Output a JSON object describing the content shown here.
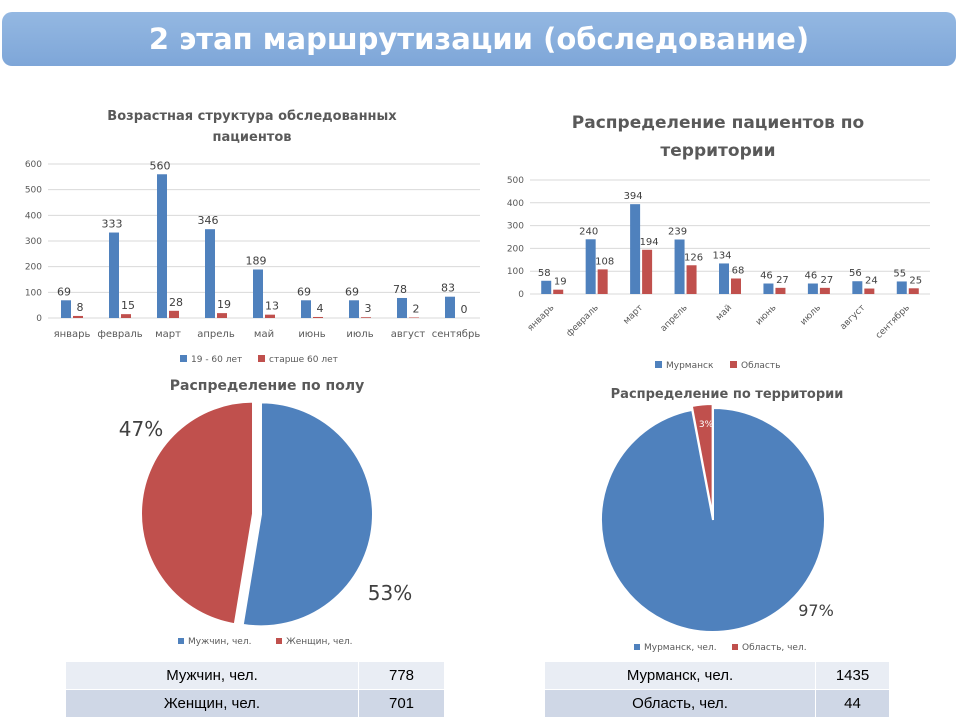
{
  "header": {
    "title": "2 этап маршрутизации (обследование)"
  },
  "colors": {
    "blue": "#4f81bd",
    "red": "#c0504d",
    "banner": "#8db3e2"
  },
  "chart_data": [
    {
      "id": "age",
      "type": "bar",
      "title_lines": [
        "Возрастная структура обследованных",
        "пациентов"
      ],
      "categories": [
        "январь",
        "февраль",
        "март",
        "апрель",
        "май",
        "июнь",
        "июль",
        "август",
        "сентябрь"
      ],
      "series": [
        {
          "name": "19 - 60 лет",
          "color": "#4f81bd",
          "values": [
            69,
            333,
            560,
            346,
            189,
            69,
            69,
            78,
            83
          ]
        },
        {
          "name": "старше 60 лет",
          "color": "#c0504d",
          "values": [
            8,
            15,
            28,
            19,
            13,
            4,
            3,
            2,
            0
          ]
        }
      ],
      "ylim": [
        0,
        600
      ],
      "yticks": [
        0,
        100,
        200,
        300,
        400,
        500,
        600
      ],
      "grid": true,
      "legend": "bottom"
    },
    {
      "id": "territory-bar",
      "type": "bar",
      "title_lines": [
        "Распределение пациентов по",
        "территории"
      ],
      "categories": [
        "январь",
        "февраль",
        "март",
        "апрель",
        "май",
        "июнь",
        "июль",
        "август",
        "сентябрь"
      ],
      "series": [
        {
          "name": "Мурманск",
          "color": "#4f81bd",
          "values": [
            58,
            240,
            394,
            239,
            134,
            46,
            46,
            56,
            55
          ]
        },
        {
          "name": "Область",
          "color": "#c0504d",
          "values": [
            19,
            108,
            194,
            126,
            68,
            27,
            27,
            24,
            25
          ]
        }
      ],
      "ylim": [
        0,
        500
      ],
      "yticks": [
        0,
        100,
        200,
        300,
        400,
        500
      ],
      "grid": true,
      "legend": "bottom"
    },
    {
      "id": "gender-pie",
      "type": "pie",
      "title": "Распределение по полу",
      "slices": [
        {
          "name": "Мужчин, чел.",
          "value": 778,
          "label": "53%",
          "color": "#4f81bd"
        },
        {
          "name": "Женщин, чел.",
          "value": 701,
          "label": "47%",
          "color": "#c0504d"
        }
      ],
      "legend": "bottom"
    },
    {
      "id": "territory-pie",
      "type": "pie",
      "title": "Распределение по территории",
      "slices": [
        {
          "name": "Мурманск, чел.",
          "value": 1435,
          "label": "97%",
          "color": "#4f81bd"
        },
        {
          "name": "Область, чел.",
          "value": 44,
          "label": "3%",
          "color": "#c0504d"
        }
      ],
      "legend": "bottom"
    }
  ],
  "tables": {
    "gender": [
      {
        "label": "Мужчин, чел.",
        "value": "778"
      },
      {
        "label": "Женщин, чел.",
        "value": "701"
      }
    ],
    "territory": [
      {
        "label": "Мурманск, чел.",
        "value": "1435"
      },
      {
        "label": "Область, чел.",
        "value": "44"
      }
    ]
  }
}
